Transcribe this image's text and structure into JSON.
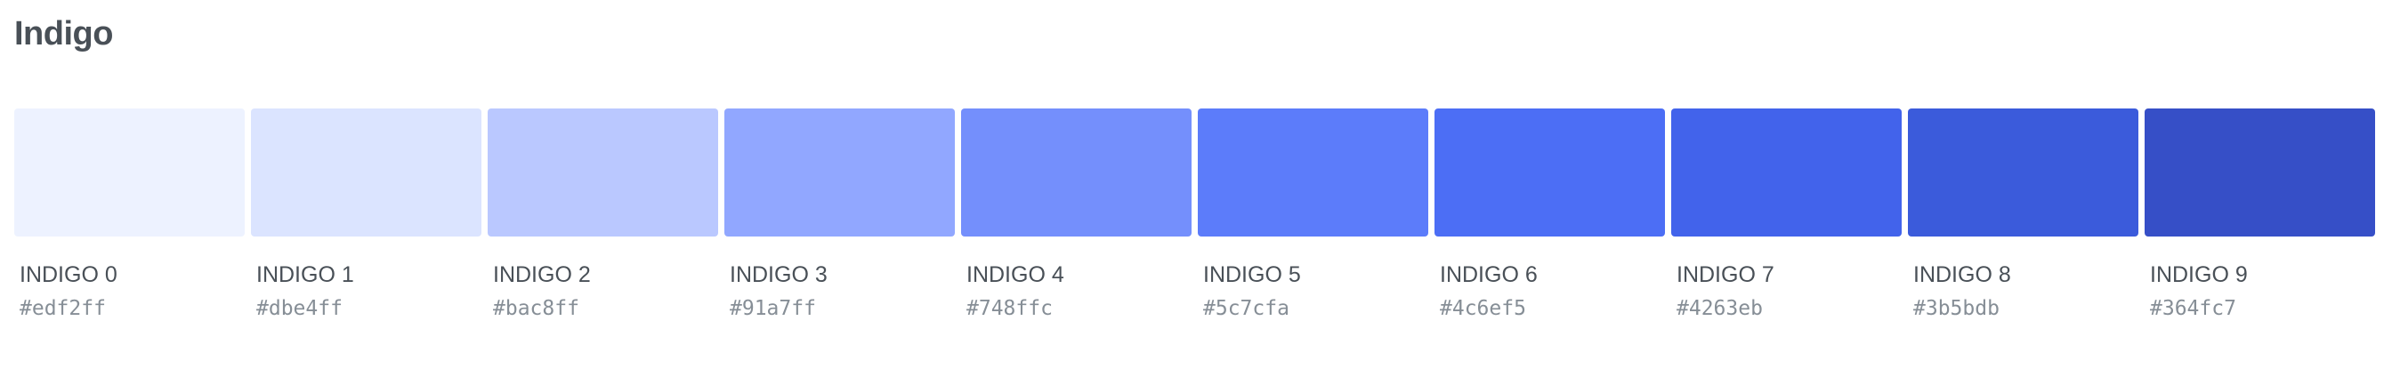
{
  "palette": {
    "title": "Indigo",
    "swatches": [
      {
        "name": "INDIGO 0",
        "hex": "#edf2ff",
        "color": "#edf2ff"
      },
      {
        "name": "INDIGO 1",
        "hex": "#dbe4ff",
        "color": "#dbe4ff"
      },
      {
        "name": "INDIGO 2",
        "hex": "#bac8ff",
        "color": "#bac8ff"
      },
      {
        "name": "INDIGO 3",
        "hex": "#91a7ff",
        "color": "#91a7ff"
      },
      {
        "name": "INDIGO 4",
        "hex": "#748ffc",
        "color": "#748ffc"
      },
      {
        "name": "INDIGO 5",
        "hex": "#5c7cfa",
        "color": "#5c7cfa"
      },
      {
        "name": "INDIGO 6",
        "hex": "#4c6ef5",
        "color": "#4c6ef5"
      },
      {
        "name": "INDIGO 7",
        "hex": "#4263eb",
        "color": "#4263eb"
      },
      {
        "name": "INDIGO 8",
        "hex": "#3b5bdb",
        "color": "#3b5bdb"
      },
      {
        "name": "INDIGO 9",
        "hex": "#364fc7",
        "color": "#364fc7"
      }
    ]
  }
}
